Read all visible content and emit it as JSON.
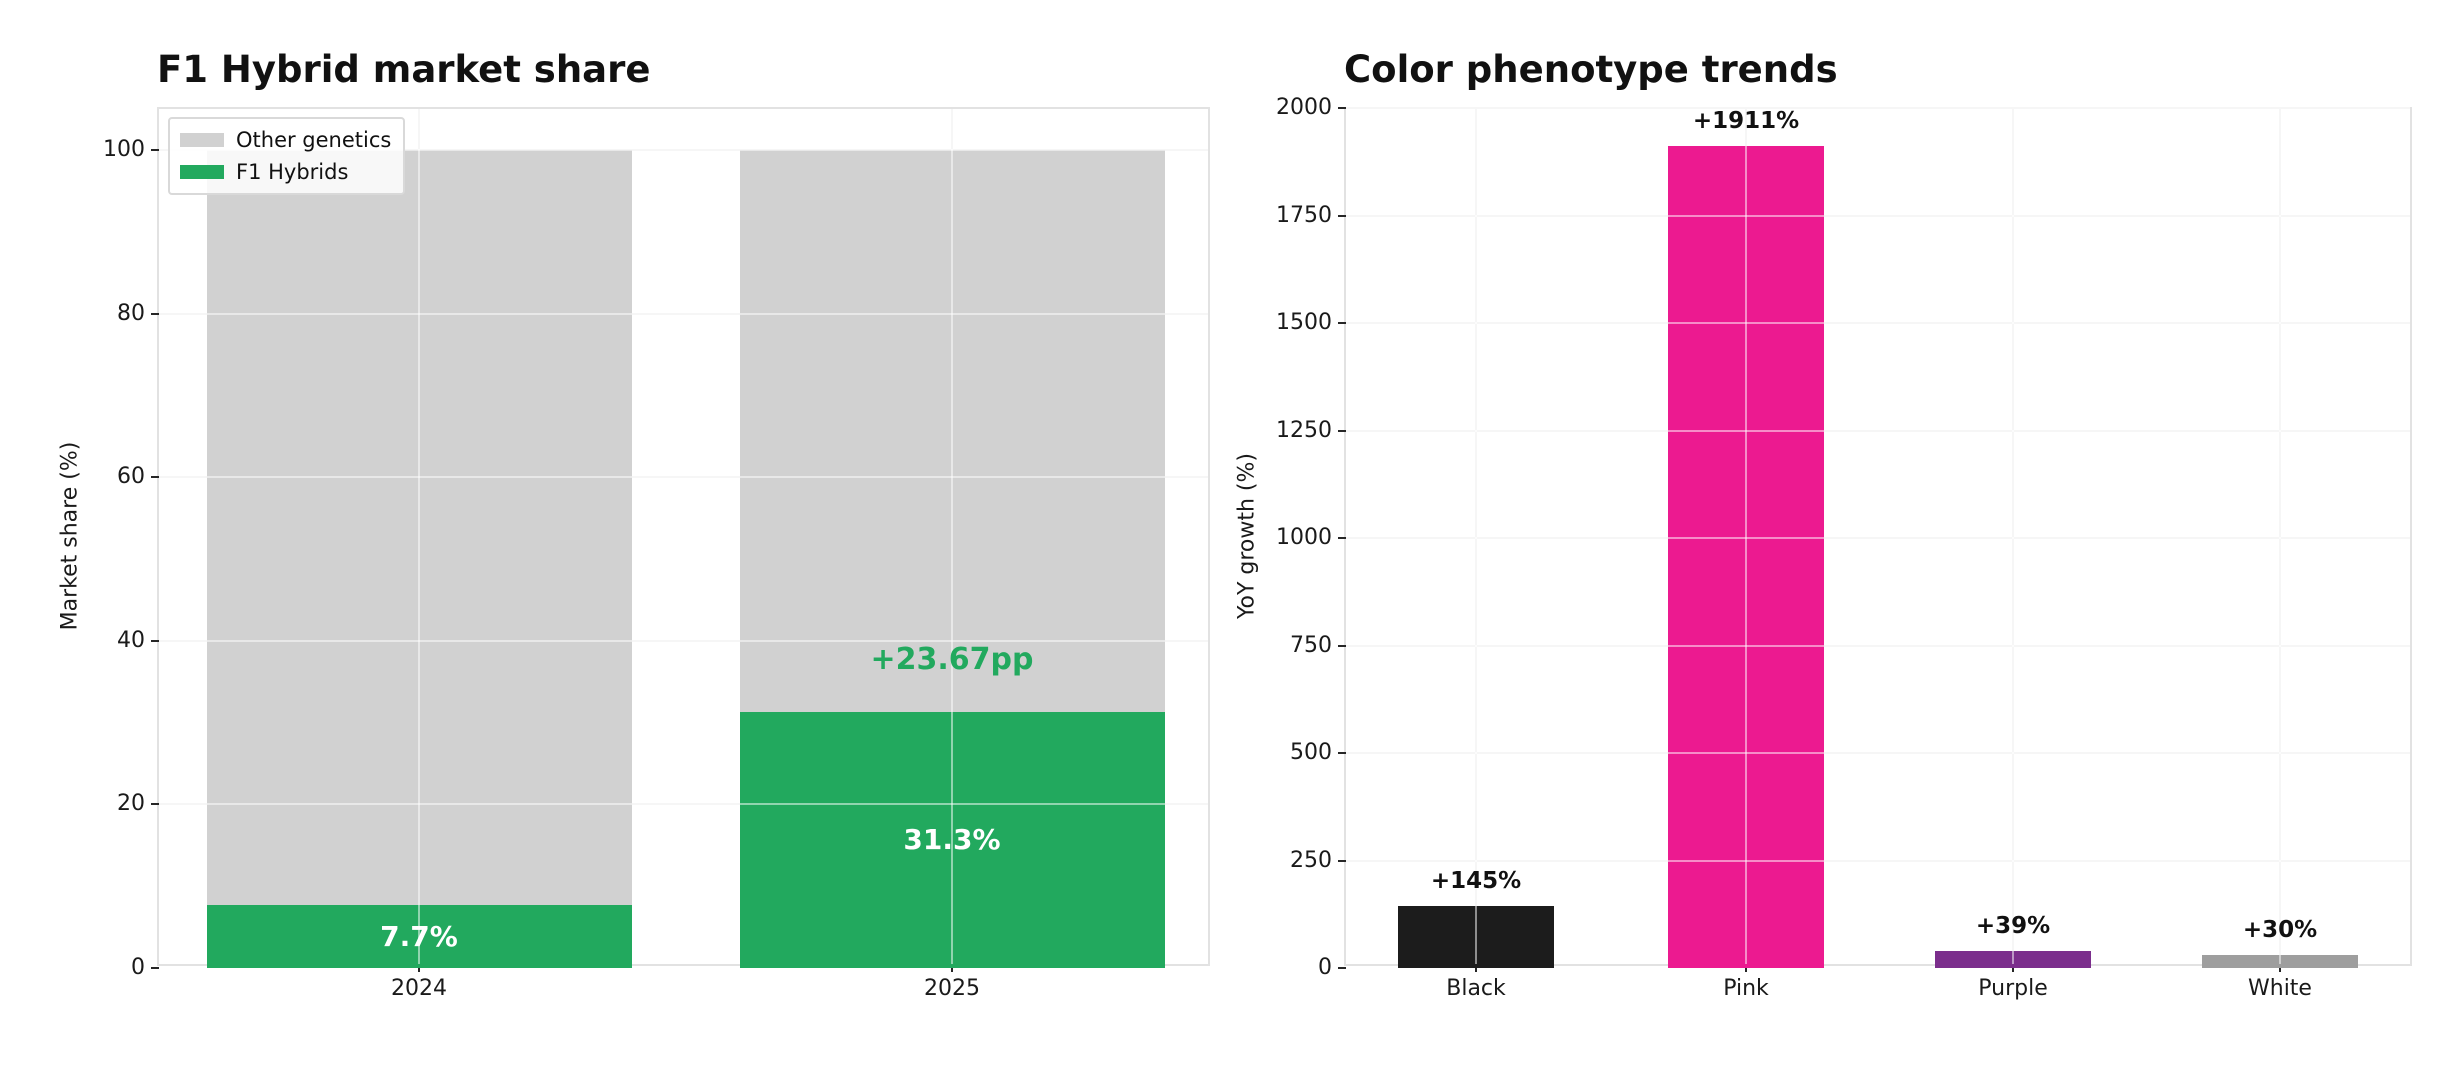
{
  "figure": {
    "background": "#ffffff"
  },
  "chart_data": [
    {
      "type": "bar-stacked",
      "title": "F1 Hybrid market share",
      "ylabel": "Market share (%)",
      "xlabel": "",
      "categories": [
        "2024",
        "2025"
      ],
      "series": [
        {
          "name": "F1 Hybrids",
          "color": "#22a95e",
          "values": [
            7.7,
            31.3
          ]
        },
        {
          "name": "Other genetics",
          "color": "#d1d1d1",
          "values": [
            92.3,
            68.7
          ]
        }
      ],
      "stack_total": 100,
      "bar_value_labels": [
        "7.7%",
        "31.3%"
      ],
      "bar_value_label_color": "#ffffff",
      "annotation": {
        "text": "+23.67pp",
        "color": "#22a95e",
        "target_category": "2025"
      },
      "yticks": [
        0,
        20,
        40,
        60,
        80,
        100
      ],
      "ylim": [
        0,
        105
      ],
      "grid": true,
      "legend_position": "upper-left",
      "legend_items": [
        {
          "label": "Other genetics",
          "color": "#d1d1d1"
        },
        {
          "label": "F1 Hybrids",
          "color": "#22a95e"
        }
      ]
    },
    {
      "type": "bar",
      "title": "Color phenotype trends",
      "ylabel": "YoY growth (%)",
      "xlabel": "",
      "categories": [
        "Black",
        "Pink",
        "Purple",
        "White"
      ],
      "values": [
        145,
        1911,
        39,
        30
      ],
      "bar_colors": [
        "#1c1c1c",
        "#ec1a90",
        "#7b2e8c",
        "#9e9e9e"
      ],
      "value_labels": [
        "+145%",
        "+1911%",
        "+39%",
        "+30%"
      ],
      "value_label_color": "#111111",
      "yticks": [
        0,
        250,
        500,
        750,
        1000,
        1250,
        1500,
        1750,
        2000
      ],
      "ylim": [
        0,
        2000
      ],
      "grid": true
    }
  ]
}
